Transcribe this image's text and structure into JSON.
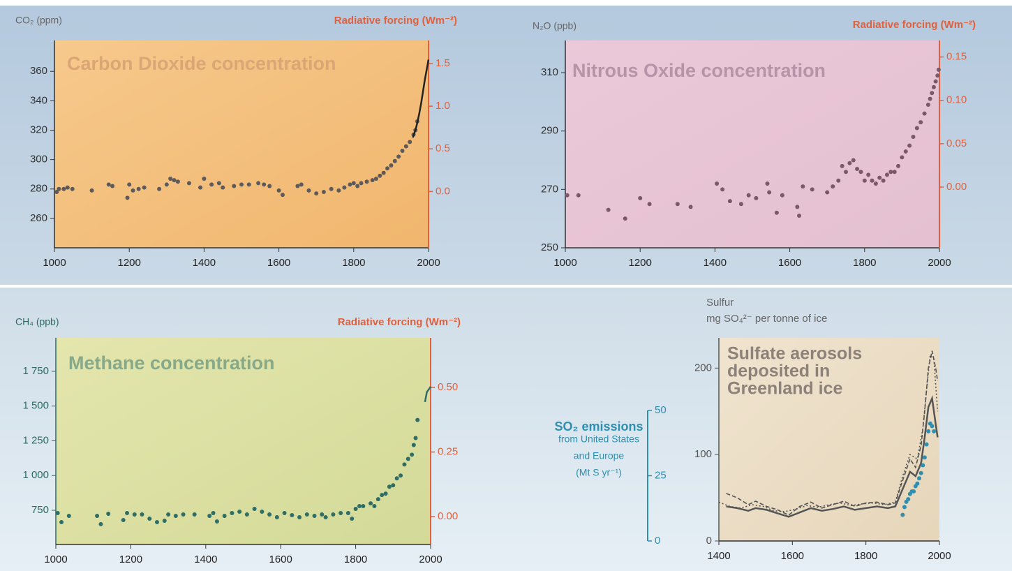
{
  "chart_data": [
    {
      "type": "scatter",
      "title": "Carbon Dioxide concentration",
      "ylabel": "CO₂ (ppm)",
      "y2label": "Radiative forcing (Wm⁻²)",
      "xlim": [
        1000,
        2000
      ],
      "xticks": [
        1000,
        1200,
        1400,
        1600,
        1800,
        2000
      ],
      "ylim": [
        240,
        381
      ],
      "yticks": [
        260,
        280,
        300,
        320,
        340,
        360
      ],
      "y2lim": [
        -0.66,
        1.77
      ],
      "y2ticks": [
        {
          "value": 0,
          "label": "0.0"
        },
        0.5,
        {
          "value": 1,
          "label": "1.0"
        },
        1.5
      ],
      "axis_color": "#333333",
      "y2_color": "#e2603c",
      "series": [
        {
          "style": "points",
          "color": "#5e5a5a",
          "x": [
            1006,
            1012,
            1025,
            1035,
            1048,
            1100,
            1145,
            1155,
            1195,
            1200,
            1210,
            1225,
            1240,
            1280,
            1300,
            1310,
            1320,
            1330,
            1360,
            1390,
            1400,
            1420,
            1440,
            1450,
            1480,
            1500,
            1520,
            1545,
            1560,
            1575,
            1600,
            1610,
            1650,
            1660,
            1680,
            1700,
            1720,
            1740,
            1760,
            1775,
            1790,
            1800,
            1810,
            1820,
            1835,
            1850,
            1860,
            1870,
            1880,
            1890,
            1900,
            1910,
            1920,
            1930,
            1940,
            1950,
            1960,
            1965,
            1970
          ],
          "values": [
            278,
            280,
            280,
            281,
            280,
            279,
            283,
            282,
            274,
            283,
            279,
            280,
            281,
            280,
            283,
            287,
            286,
            285,
            284,
            281,
            287,
            283,
            284,
            281,
            282,
            283,
            283,
            284,
            283,
            282,
            279,
            276,
            282,
            283,
            279,
            277,
            278,
            280,
            279,
            281,
            283,
            284,
            282,
            284,
            285,
            286,
            287,
            289,
            291,
            294,
            296,
            299,
            302,
            306,
            309,
            312,
            317,
            320,
            326
          ]
        },
        {
          "style": "line",
          "linestyle": "solid",
          "color": "#222222",
          "x": [
            1958,
            1965,
            1970,
            1975,
            1980,
            1985,
            1990,
            1995,
            2000
          ],
          "values": [
            315,
            320,
            325,
            331,
            338,
            346,
            354,
            361,
            368
          ]
        }
      ]
    },
    {
      "type": "scatter",
      "title": "Nitrous Oxide concentration",
      "ylabel": "N₂O (ppb)",
      "y2label": "Radiative forcing (Wm⁻²)",
      "xlim": [
        1000,
        2000
      ],
      "xticks": [
        1000,
        1200,
        1400,
        1600,
        1800,
        2000
      ],
      "ylim": [
        250,
        321
      ],
      "yticks": [
        250,
        270,
        290,
        310
      ],
      "y2lim": [
        -0.07,
        0.169
      ],
      "y2ticks": [
        {
          "value": 0,
          "label": "0.00"
        },
        0.05,
        {
          "value": 0.1,
          "label": "0.10"
        },
        0.15
      ],
      "axis_color": "#333333",
      "y2_color": "#e2603c",
      "series": [
        {
          "style": "points",
          "color": "#7a5868",
          "x": [
            1005,
            1035,
            1115,
            1160,
            1200,
            1225,
            1300,
            1335,
            1405,
            1420,
            1440,
            1470,
            1490,
            1510,
            1540,
            1545,
            1565,
            1580,
            1620,
            1625,
            1635,
            1660,
            1700,
            1715,
            1730,
            1740,
            1750,
            1760,
            1770,
            1780,
            1790,
            1800,
            1810,
            1820,
            1830,
            1840,
            1850,
            1860,
            1870,
            1880,
            1890,
            1900,
            1910,
            1920,
            1930,
            1940,
            1950,
            1960,
            1970,
            1975,
            1980,
            1985,
            1990,
            1995,
            1998
          ],
          "values": [
            268,
            268,
            263,
            260,
            267,
            265,
            265,
            264,
            272,
            270,
            266,
            265,
            268,
            267,
            272,
            269,
            262,
            268,
            264,
            261,
            271,
            270,
            269,
            271,
            273,
            278,
            276,
            279,
            280,
            277,
            276,
            273,
            275,
            273,
            272,
            274,
            273,
            275,
            276,
            276,
            278,
            281,
            283,
            285,
            288,
            291,
            293,
            296,
            299,
            301,
            303,
            305,
            307,
            309,
            311
          ]
        }
      ]
    },
    {
      "type": "scatter",
      "title": "Methane concentration",
      "ylabel": "CH₄ (ppb)",
      "y2label": "Radiative forcing (Wm⁻²)",
      "xlim": [
        1000,
        2000
      ],
      "xticks": [
        1000,
        1200,
        1400,
        1600,
        1800,
        2000
      ],
      "ylim": [
        504,
        1991
      ],
      "yticks": [
        {
          "value": 750,
          "label": "750"
        },
        {
          "value": 1000,
          "label": "1 000"
        },
        {
          "value": 1250,
          "label": "1 250"
        },
        {
          "value": 1500,
          "label": "1 500"
        },
        {
          "value": 1750,
          "label": "1 750"
        }
      ],
      "y2lim": [
        -0.108,
        0.692
      ],
      "y2ticks": [
        {
          "value": 0,
          "label": "0.00"
        },
        0.25,
        {
          "value": 0.5,
          "label": "0.50"
        }
      ],
      "axis_color": "#2f6a60",
      "y2_color": "#e2603c",
      "series": [
        {
          "style": "points",
          "color": "#2f6e66",
          "x": [
            1005,
            1015,
            1035,
            1110,
            1120,
            1140,
            1180,
            1190,
            1210,
            1230,
            1250,
            1270,
            1290,
            1300,
            1320,
            1340,
            1370,
            1410,
            1420,
            1430,
            1450,
            1470,
            1490,
            1510,
            1530,
            1550,
            1570,
            1590,
            1610,
            1630,
            1650,
            1670,
            1690,
            1710,
            1720,
            1740,
            1760,
            1780,
            1790,
            1800,
            1810,
            1820,
            1840,
            1850,
            1860,
            1870,
            1880,
            1890,
            1900,
            1910,
            1920,
            1930,
            1940,
            1950,
            1955,
            1960,
            1965
          ],
          "values": [
            730,
            665,
            710,
            710,
            650,
            725,
            680,
            730,
            720,
            720,
            690,
            665,
            675,
            720,
            710,
            720,
            720,
            710,
            730,
            670,
            710,
            730,
            740,
            720,
            760,
            740,
            720,
            700,
            730,
            715,
            700,
            720,
            710,
            720,
            700,
            720,
            730,
            730,
            690,
            760,
            780,
            780,
            800,
            780,
            830,
            860,
            870,
            920,
            930,
            980,
            1000,
            1080,
            1120,
            1150,
            1220,
            1270,
            1400
          ]
        },
        {
          "style": "line",
          "linestyle": "solid",
          "color": "#2f6e66",
          "x": [
            1985,
            1990,
            1995,
            2000
          ],
          "values": [
            1530,
            1600,
            1620,
            1640
          ]
        }
      ]
    },
    {
      "type": "line",
      "title": [
        "Sulfate aerosols",
        "deposited in",
        "Greenland ice"
      ],
      "ylabel": [
        "Sulfur",
        "mg SO₄²⁻ per tonne of ice"
      ],
      "y2label": [
        "SO₂ emissions",
        "from United States",
        "and Europe",
        "(Mt S yr⁻¹)"
      ],
      "xlim": [
        1400,
        2000
      ],
      "xticks": [
        1400,
        1600,
        1800,
        2000
      ],
      "ylim": [
        0,
        235
      ],
      "yticks": [
        0,
        100,
        200
      ],
      "y2lim": [
        0,
        50
      ],
      "y2ticks": [
        0,
        25,
        50
      ],
      "axis_color": "#555555",
      "y2_color": "#2e8fb0",
      "series": [
        {
          "style": "line",
          "linestyle": "solid",
          "color": "#555555",
          "x": [
            1420,
            1450,
            1480,
            1500,
            1530,
            1560,
            1590,
            1620,
            1650,
            1680,
            1710,
            1740,
            1770,
            1800,
            1830,
            1860,
            1880,
            1900,
            1920,
            1935,
            1950,
            1960,
            1970,
            1980,
            1990,
            1995
          ],
          "values": [
            40,
            38,
            35,
            38,
            36,
            32,
            28,
            33,
            38,
            35,
            37,
            40,
            36,
            38,
            40,
            38,
            40,
            60,
            80,
            75,
            90,
            120,
            155,
            165,
            135,
            120
          ]
        },
        {
          "style": "line",
          "linestyle": "dashed",
          "color": "#555555",
          "x": [
            1420,
            1450,
            1480,
            1500,
            1530,
            1560,
            1590,
            1620,
            1650,
            1680,
            1710,
            1740,
            1770,
            1800,
            1830,
            1860,
            1880,
            1900,
            1920,
            1935,
            1950,
            1960,
            1970,
            1980,
            1990,
            1995
          ],
          "values": [
            55,
            50,
            42,
            46,
            40,
            36,
            30,
            40,
            45,
            38,
            42,
            46,
            40,
            44,
            45,
            42,
            44,
            70,
            95,
            85,
            110,
            150,
            200,
            220,
            200,
            185
          ]
        },
        {
          "style": "line",
          "linestyle": "dotted",
          "color": "#555555",
          "x": [
            1400,
            1430,
            1460,
            1490,
            1520,
            1550,
            1580,
            1610,
            1640,
            1670,
            1700,
            1730,
            1760,
            1790,
            1820,
            1850,
            1880,
            1900,
            1920,
            1940,
            1955,
            1965,
            1975,
            1985,
            1995
          ],
          "values": [
            45,
            40,
            38,
            42,
            40,
            35,
            34,
            37,
            41,
            39,
            42,
            44,
            41,
            43,
            44,
            42,
            45,
            75,
            100,
            95,
            130,
            175,
            215,
            210,
            150
          ]
        },
        {
          "style": "points",
          "axis": "y2",
          "color": "#2e8fb0",
          "x": [
            1900,
            1905,
            1910,
            1915,
            1920,
            1925,
            1930,
            1935,
            1940,
            1945,
            1950,
            1955,
            1960,
            1965,
            1970,
            1975,
            1980,
            1985
          ],
          "values": [
            10,
            13,
            15,
            16,
            18,
            19,
            19,
            21,
            22,
            24,
            26,
            29,
            32,
            37,
            42,
            45,
            44,
            42
          ]
        }
      ]
    }
  ]
}
